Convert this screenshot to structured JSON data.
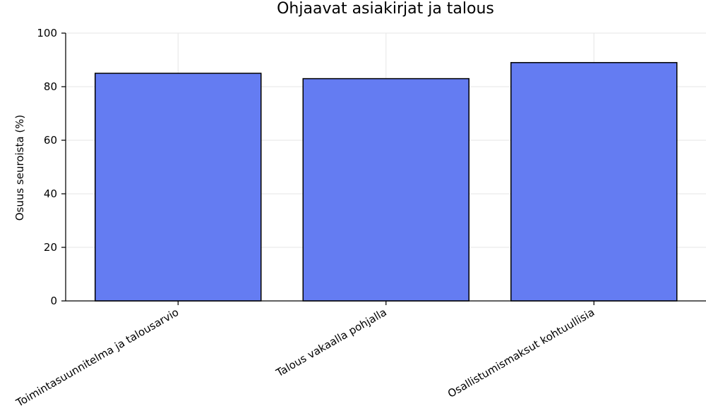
{
  "chart_data": {
    "type": "bar",
    "title": "Ohjaavat asiakirjat ja talous",
    "xlabel": "",
    "ylabel": "Osuus seuroista (%)",
    "categories": [
      "Toimintasuunnitelma ja talousarvio",
      "Talous vakaalla pohjalla",
      "Osallistumismaksut kohtuullisia"
    ],
    "values": [
      85,
      83,
      89
    ],
    "ylim": [
      0,
      100
    ],
    "yticks": [
      0,
      20,
      40,
      60,
      80,
      100
    ],
    "grid": true,
    "bar_color": "#647cf2",
    "bar_edge_color": "#000000"
  }
}
